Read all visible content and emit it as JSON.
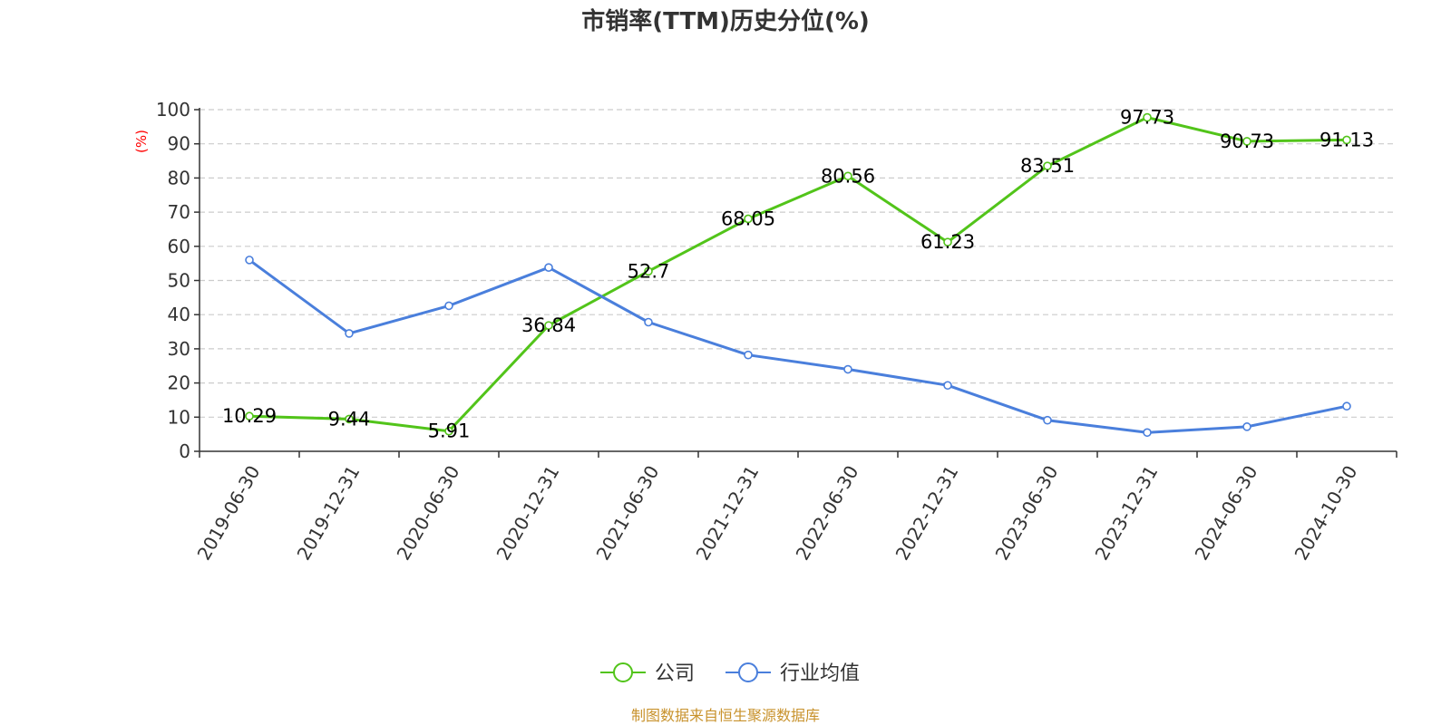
{
  "chart_data": {
    "type": "line",
    "title": "市销率(TTM)历史分位(%)",
    "ylabel": "(%)",
    "ylim": [
      0,
      100
    ],
    "y_ticks": [
      "0",
      "10",
      "20",
      "30",
      "40",
      "50",
      "60",
      "70",
      "80",
      "90",
      "100"
    ],
    "categories": [
      "2019-06-30",
      "2019-12-31",
      "2020-06-30",
      "2020-12-31",
      "2021-06-30",
      "2021-12-31",
      "2022-06-30",
      "2022-12-31",
      "2023-06-30",
      "2023-12-31",
      "2024-06-30",
      "2024-10-30"
    ],
    "series": [
      {
        "name": "公司",
        "color": "#52c41a",
        "values": [
          10.29,
          9.44,
          5.91,
          36.84,
          52.7,
          68.05,
          80.56,
          61.23,
          83.51,
          97.73,
          90.73,
          91.13
        ],
        "labels": [
          "10.29",
          "9.44",
          "5.91",
          "36.84",
          "52.7",
          "68.05",
          "80.56",
          "61.23",
          "83.51",
          "97.73",
          "90.73",
          "91.13"
        ]
      },
      {
        "name": "行业均值",
        "color": "#4a7fdc",
        "values": [
          56.0,
          34.5,
          42.6,
          53.8,
          37.8,
          28.2,
          24.0,
          19.3,
          9.1,
          5.5,
          7.2,
          13.2
        ]
      }
    ],
    "grid": true,
    "legend_position": "bottom-center"
  },
  "footer": {
    "source": "制图数据来自恒生聚源数据库"
  }
}
